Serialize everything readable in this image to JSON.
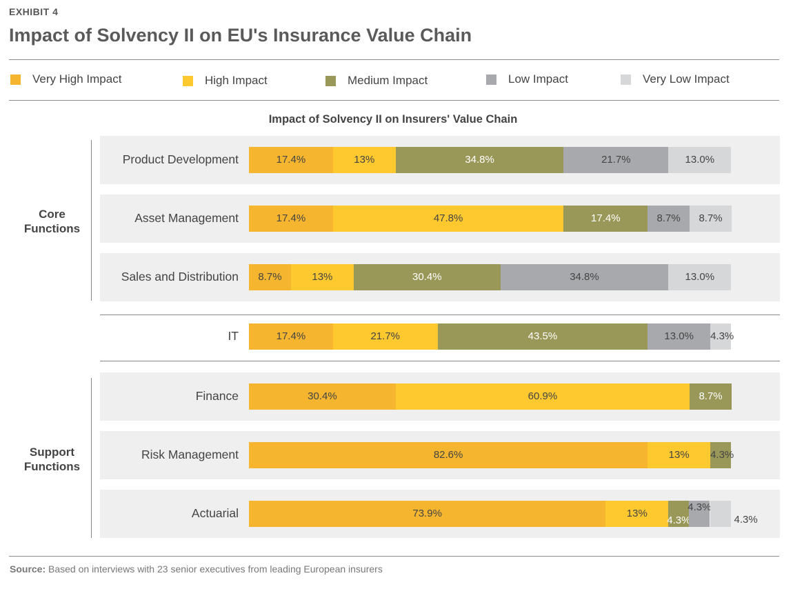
{
  "header": {
    "exhibit": "EXHIBIT 4",
    "title": "Impact of Solvency II on EU's Insurance Value Chain"
  },
  "legend": [
    {
      "label": "Very High Impact",
      "color": "#f5b52e"
    },
    {
      "label": "High Impact",
      "color": "#fdc92f"
    },
    {
      "label": "Medium Impact",
      "color": "#999858"
    },
    {
      "label": "Low Impact",
      "color": "#a7a9ac"
    },
    {
      "label": "Very Low Impact",
      "color": "#d6d7d9"
    }
  ],
  "groups": {
    "core": "Core Functions",
    "support": "Support Functions"
  },
  "footer": {
    "source_label": "Source:",
    "source_text": "Based on interviews with 23 senior executives from leading European insurers"
  },
  "chart_data": {
    "type": "bar",
    "orientation": "horizontal",
    "stacked": true,
    "title": "Impact of Solvency II on Insurers' Value Chain",
    "categories": [
      "Product Development",
      "Asset Management",
      "Sales and Distribution",
      "IT",
      "Finance",
      "Risk Management",
      "Actuarial"
    ],
    "series": [
      {
        "name": "Very High Impact",
        "color": "#f5b52e",
        "values": [
          17.4,
          17.4,
          8.7,
          17.4,
          30.4,
          82.6,
          73.9
        ],
        "labels": [
          "17.4%",
          "17.4%",
          "8.7%",
          "17.4%",
          "30.4%",
          "82.6%",
          "73.9%"
        ]
      },
      {
        "name": "High Impact",
        "color": "#fdc92f",
        "values": [
          13,
          47.8,
          13,
          21.7,
          60.9,
          13,
          13
        ],
        "labels": [
          "13%",
          "47.8%",
          "13%",
          "21.7%",
          "60.9%",
          "13%",
          "13%"
        ]
      },
      {
        "name": "Medium Impact",
        "color": "#999858",
        "values": [
          34.8,
          17.4,
          30.4,
          43.5,
          8.7,
          4.3,
          4.3
        ],
        "labels": [
          "34.8%",
          "17.4%",
          "30.4%",
          "43.5%",
          "8.7%",
          "4.3%",
          "4.3%"
        ]
      },
      {
        "name": "Low Impact",
        "color": "#a7a9ac",
        "values": [
          21.7,
          8.7,
          34.8,
          13.0,
          0,
          0,
          4.3
        ],
        "labels": [
          "21.7%",
          "8.7%",
          "34.8%",
          "13.0%",
          "",
          "",
          "4.3%"
        ]
      },
      {
        "name": "Very Low Impact",
        "color": "#d6d7d9",
        "values": [
          13.0,
          8.7,
          13.0,
          4.3,
          0,
          0,
          4.3
        ],
        "labels": [
          "13.0%",
          "8.7%",
          "13.0%",
          "4.3%",
          "",
          "",
          "4.3%"
        ]
      }
    ],
    "xlim": [
      0,
      100
    ]
  }
}
